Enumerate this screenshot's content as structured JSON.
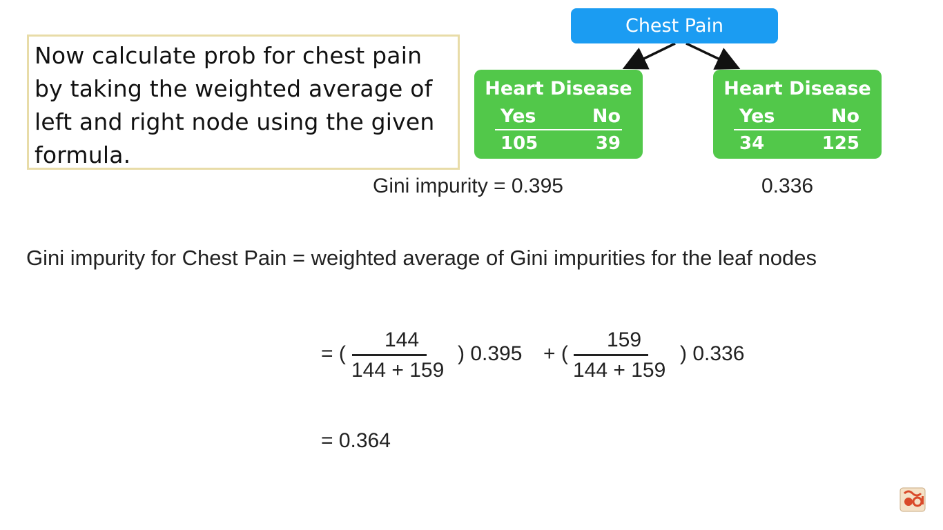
{
  "note": {
    "text": "Now calculate prob for chest pain by taking the weighted average of left and right node using the given formula."
  },
  "tree": {
    "root": "Chest Pain",
    "leaves": [
      {
        "title": "Heart Disease",
        "col_yes": "Yes",
        "col_no": "No",
        "yes_value": "105",
        "no_value": "39",
        "gini": "Gini impurity = 0.395"
      },
      {
        "title": "Heart Disease",
        "col_yes": "Yes",
        "col_no": "No",
        "yes_value": "34",
        "no_value": "125",
        "gini": "0.336"
      }
    ]
  },
  "statement": "Gini impurity for Chest Pain = weighted average of Gini impurities for the leaf nodes",
  "formula": {
    "eq_open1": "= (",
    "num1": "144",
    "den1": "144 + 159",
    "close1": ") 0.395",
    "plus_open2": "+ (",
    "num2": "159",
    "den2": "144 + 159",
    "close2": ") 0.336"
  },
  "result": "= 0.364",
  "colors": {
    "root_node": "#1b9cf2",
    "leaf_node": "#52c84a",
    "note_border": "#e8dca8"
  }
}
